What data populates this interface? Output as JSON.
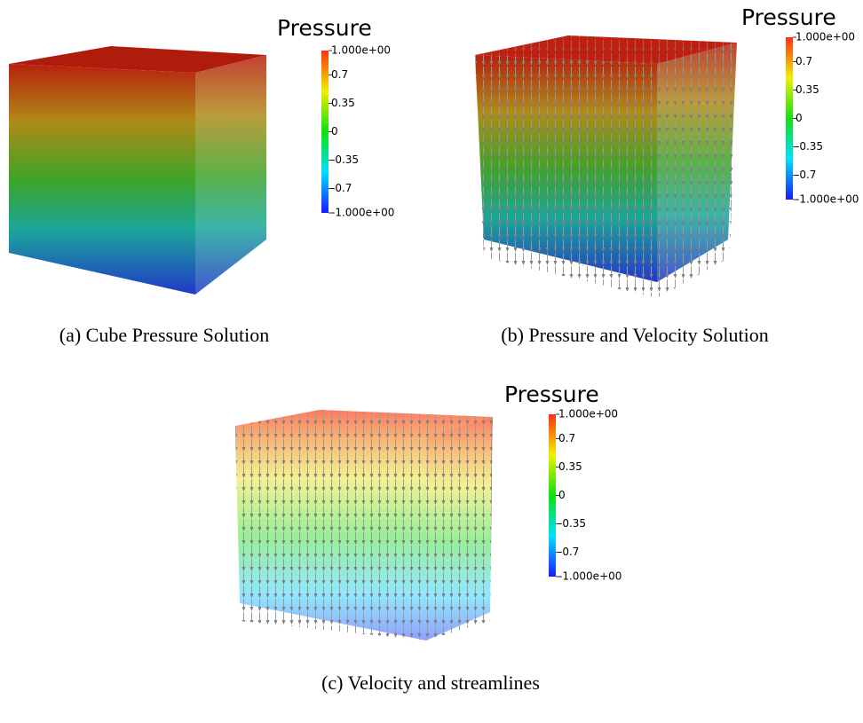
{
  "panels": [
    {
      "colorbar": {
        "title": "Pressure",
        "range": [
          -1,
          1
        ],
        "ticks": [
          {
            "value": 1,
            "label": "1.000e+00"
          },
          0.7,
          0.35,
          0,
          -0.35,
          -0.7,
          {
            "value": -1,
            "label": "-1.000e+00"
          }
        ]
      },
      "caption": "(a) Cube Pressure Solution"
    },
    {
      "colorbar": {
        "title": "Pressure",
        "range": [
          -1,
          1
        ],
        "ticks": [
          {
            "value": 1,
            "label": "1.000e+00"
          },
          0.7,
          0.35,
          0,
          -0.35,
          -0.7,
          {
            "value": -1,
            "label": "-1.000e+00"
          }
        ]
      },
      "caption": "(b) Pressure and Velocity Solution"
    },
    {
      "colorbar": {
        "title": "Pressure",
        "range": [
          -1,
          1
        ],
        "ticks": [
          {
            "value": 1,
            "label": "1.000e+00"
          },
          0.7,
          0.35,
          0,
          -0.35,
          -0.7,
          {
            "value": -1,
            "label": "-1.000e+00"
          }
        ]
      },
      "caption": "(c) Velocity and streamlines"
    }
  ]
}
